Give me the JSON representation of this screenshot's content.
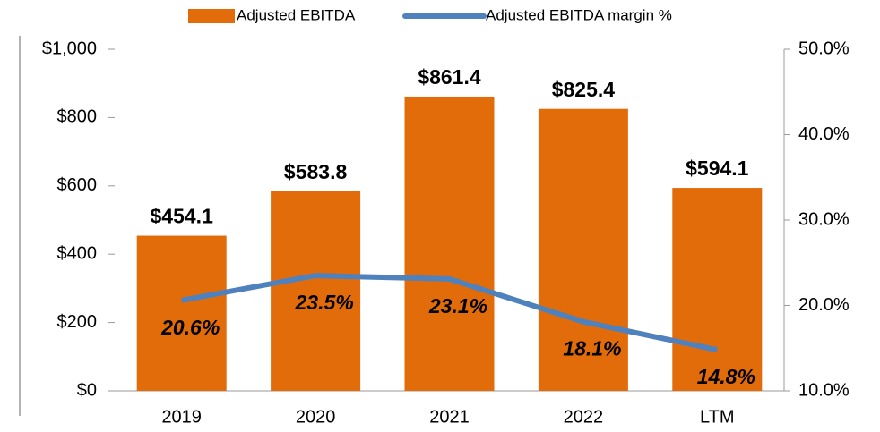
{
  "chart_data": {
    "type": "bar",
    "categories": [
      "2019",
      "2020",
      "2021",
      "2022",
      "LTM"
    ],
    "series": [
      {
        "name": "Adjusted EBITDA",
        "type": "bar",
        "color": "#e36c0a",
        "values": [
          454.1,
          583.8,
          861.4,
          825.4,
          594.1
        ],
        "value_labels": [
          "$454.1",
          "$583.8",
          "$861.4",
          "$825.4",
          "$594.1"
        ]
      },
      {
        "name": "Adjusted EBITDA margin %",
        "type": "line",
        "axis": "y2",
        "color": "#4f81bd",
        "values": [
          20.6,
          23.5,
          23.1,
          18.1,
          14.8
        ],
        "value_labels": [
          "20.6%",
          "23.5%",
          "23.1%",
          "18.1%",
          "14.8%"
        ]
      }
    ],
    "ylim": [
      0,
      1000
    ],
    "yticks": [
      {
        "value": 0,
        "label": "$0"
      },
      {
        "value": 200,
        "label": "$200"
      },
      {
        "value": 400,
        "label": "$400"
      },
      {
        "value": 600,
        "label": "$600"
      },
      {
        "value": 800,
        "label": "$800"
      },
      {
        "value": 1000,
        "label": "$1,000"
      }
    ],
    "y2lim": [
      10,
      50
    ],
    "y2ticks": [
      {
        "value": 10,
        "label": "10.0%"
      },
      {
        "value": 20,
        "label": "20.0%"
      },
      {
        "value": 30,
        "label": "30.0%"
      },
      {
        "value": 40,
        "label": "40.0%"
      },
      {
        "value": 50,
        "label": "50.0%"
      }
    ],
    "legend": "top"
  }
}
